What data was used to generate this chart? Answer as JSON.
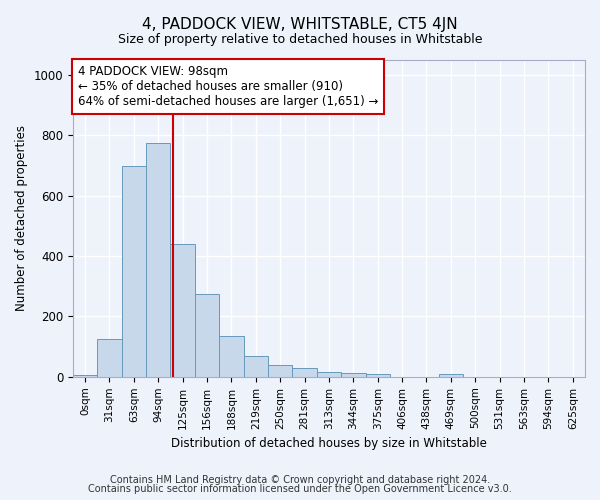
{
  "title": "4, PADDOCK VIEW, WHITSTABLE, CT5 4JN",
  "subtitle": "Size of property relative to detached houses in Whitstable",
  "xlabel": "Distribution of detached houses by size in Whitstable",
  "ylabel": "Number of detached properties",
  "bar_color": "#c8d8eb",
  "bar_edge_color": "#6699bb",
  "categories": [
    "0sqm",
    "31sqm",
    "63sqm",
    "94sqm",
    "125sqm",
    "156sqm",
    "188sqm",
    "219sqm",
    "250sqm",
    "281sqm",
    "313sqm",
    "344sqm",
    "375sqm",
    "406sqm",
    "438sqm",
    "469sqm",
    "500sqm",
    "531sqm",
    "563sqm",
    "594sqm",
    "625sqm"
  ],
  "values": [
    5,
    125,
    700,
    775,
    440,
    275,
    135,
    70,
    40,
    28,
    15,
    12,
    8,
    0,
    0,
    10,
    0,
    0,
    0,
    0,
    0
  ],
  "vline_x": 3.62,
  "vline_color": "#cc0000",
  "ylim": [
    0,
    1050
  ],
  "annotation_text": "4 PADDOCK VIEW: 98sqm\n← 35% of detached houses are smaller (910)\n64% of semi-detached houses are larger (1,651) →",
  "annotation_box_color": "#ffffff",
  "annotation_box_edge_color": "#cc0000",
  "footnote1": "Contains HM Land Registry data © Crown copyright and database right 2024.",
  "footnote2": "Contains public sector information licensed under the Open Government Licence v3.0.",
  "background_color": "#eef2fb",
  "grid_color": "#ffffff"
}
